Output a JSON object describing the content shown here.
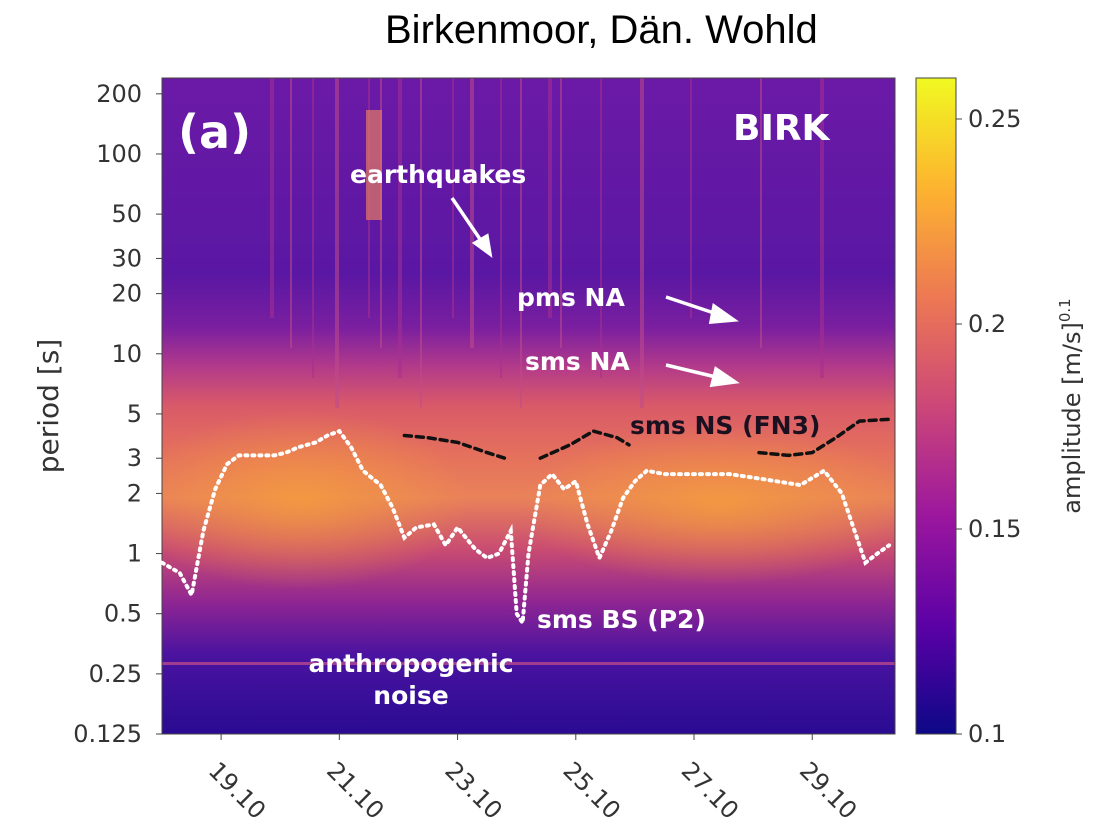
{
  "title": "Birkenmoor, Dän. Wohld",
  "chart_data": {
    "type": "heatmap",
    "panel_label": "(a)",
    "station": "BIRK",
    "ylabel": "period [s]",
    "yscale": "log",
    "ylim": [
      0.125,
      240
    ],
    "yticks": [
      "200",
      "100",
      "50",
      "30",
      "20",
      "10",
      "5",
      "3",
      "2",
      "1",
      "0.5",
      "0.25",
      "0.125"
    ],
    "xlim": [
      18.0,
      30.4
    ],
    "xticks": [
      {
        "x": 19,
        "label": "19.10"
      },
      {
        "x": 21,
        "label": "21.10"
      },
      {
        "x": 23,
        "label": "23.10"
      },
      {
        "x": 25,
        "label": "25.10"
      },
      {
        "x": 27,
        "label": "27.10"
      },
      {
        "x": 29,
        "label": "29.10"
      }
    ],
    "colorbar": {
      "label": "amplitude [m/s]",
      "label_exponent": "0.1",
      "range": [
        0.1,
        0.26
      ],
      "ticks": [
        "0.25",
        "0.2",
        "0.15",
        "0.1"
      ],
      "colormap": [
        "#0d0887",
        "#5c01a6",
        "#9c179e",
        "#cc4778",
        "#ed7953",
        "#fdb42f",
        "#f0f921"
      ]
    },
    "annotations": [
      {
        "text": "earthquakes",
        "x": 22.8,
        "y": 130
      },
      {
        "text": "pms NA",
        "x": 25.2,
        "y": 20
      },
      {
        "text": "sms NA",
        "x": 25.2,
        "y": 10
      },
      {
        "text": "sms NS (FN3)",
        "x": 26.3,
        "y": 4.7
      },
      {
        "text": "sms BS (P2)",
        "x": 24.3,
        "y": 0.52
      },
      {
        "text": "anthropogenic",
        "x": 22.0,
        "y": 0.27
      },
      {
        "text": "noise",
        "x": 22.0,
        "y": 0.16
      }
    ],
    "series": [
      {
        "style": "white dotted",
        "x": [
          18.0,
          18.3,
          18.5,
          18.7,
          18.9,
          19.1,
          19.3,
          19.6,
          19.9,
          20.1,
          20.3,
          20.6,
          20.8,
          21.0,
          21.2,
          21.4,
          21.7,
          21.9,
          22.1,
          22.3,
          22.6,
          22.8,
          23.0,
          23.3,
          23.5,
          23.7,
          23.9,
          24.0,
          24.1,
          24.2,
          24.4,
          24.6,
          24.8,
          25.0,
          25.2,
          25.4,
          25.6,
          25.8,
          26.0,
          26.2,
          26.5,
          26.8,
          27.2,
          27.6,
          28.0,
          28.4,
          28.8,
          29.2,
          29.5,
          29.8,
          29.9,
          30.1,
          30.3
        ],
        "y": [
          0.9,
          0.8,
          0.62,
          1.3,
          2.1,
          2.8,
          3.1,
          3.1,
          3.1,
          3.2,
          3.4,
          3.6,
          3.9,
          4.1,
          3.4,
          2.6,
          2.2,
          1.7,
          1.2,
          1.35,
          1.4,
          1.1,
          1.35,
          1.05,
          0.95,
          1.0,
          1.3,
          0.5,
          0.45,
          1.0,
          2.2,
          2.5,
          2.1,
          2.3,
          1.4,
          0.95,
          1.3,
          1.9,
          2.3,
          2.6,
          2.5,
          2.5,
          2.5,
          2.5,
          2.4,
          2.3,
          2.2,
          2.6,
          2.0,
          1.1,
          0.9,
          1.0,
          1.1
        ]
      },
      {
        "style": "black dashed",
        "x": [
          22.1,
          22.5,
          23.0,
          23.5,
          23.8
        ],
        "y": [
          3.9,
          3.8,
          3.6,
          3.2,
          3.0
        ]
      },
      {
        "style": "black dashed",
        "x": [
          24.4,
          24.9,
          25.3,
          25.7,
          25.9
        ],
        "y": [
          3.0,
          3.5,
          4.1,
          3.8,
          3.5
        ]
      },
      {
        "style": "black dashed",
        "x": [
          28.1,
          28.6,
          29.0,
          29.4,
          29.8,
          30.3
        ],
        "y": [
          3.2,
          3.1,
          3.2,
          3.8,
          4.6,
          4.7
        ]
      }
    ]
  }
}
